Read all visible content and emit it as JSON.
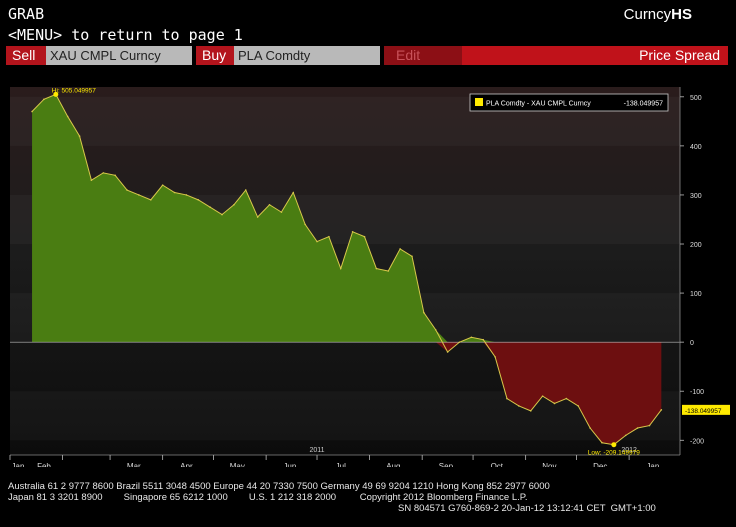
{
  "header": {
    "left_label": "GRAB",
    "right_label_prefix": "Curncy",
    "right_label_bold": "HS",
    "menu_hint": "<MENU> to return to page 1"
  },
  "toolbar": {
    "sell_label": "Sell",
    "sell_value": "XAU CMPL Curncy",
    "buy_label": "Buy",
    "buy_value": "PLA Comdty",
    "edit_label": "Edit",
    "price_spread_label": "Price Spread"
  },
  "legend": {
    "entry": "PLA Comdty - XAU CMPL Curncy",
    "value": "-138.049957"
  },
  "annotations": {
    "high": "Hi: 505.049957",
    "low": "Low: -209.149979",
    "last_value": "-138.049957"
  },
  "footer": {
    "line1": "Australia 61 2 9777 8600 Brazil 5511 3048 4500 Europe 44 20 7330 7500 Germany 49 69 9204 1210 Hong Kong 852 2977 6000",
    "line2": "Japan 81 3 3201 8900        Singapore 65 6212 1000        U.S. 1 212 318 2000         Copyright 2012 Bloomberg Finance L.P.",
    "line3": "SN 804571 G760-869-2 20-Jan-12 13:12:41 CET  GMT+1:00"
  },
  "colors": {
    "positive_fill": "#4a7d12",
    "negative_fill": "#6d0f10",
    "line": "#d8c84a",
    "accent_red": "#c0121a"
  },
  "chart_data": {
    "type": "area",
    "series": [
      {
        "name": "PLA Comdty - XAU CMPL Curncy",
        "x": [
          "2011-01-14",
          "2011-01-21",
          "2011-01-28",
          "2011-02-04",
          "2011-02-11",
          "2011-02-18",
          "2011-02-25",
          "2011-03-04",
          "2011-03-11",
          "2011-03-18",
          "2011-03-25",
          "2011-04-01",
          "2011-04-08",
          "2011-04-15",
          "2011-04-22",
          "2011-04-29",
          "2011-05-06",
          "2011-05-13",
          "2011-05-20",
          "2011-05-27",
          "2011-06-03",
          "2011-06-10",
          "2011-06-17",
          "2011-06-24",
          "2011-07-01",
          "2011-07-08",
          "2011-07-15",
          "2011-07-22",
          "2011-07-29",
          "2011-08-05",
          "2011-08-12",
          "2011-08-19",
          "2011-08-26",
          "2011-09-02",
          "2011-09-09",
          "2011-09-16",
          "2011-09-23",
          "2011-09-30",
          "2011-10-07",
          "2011-10-14",
          "2011-10-21",
          "2011-10-28",
          "2011-11-04",
          "2011-11-11",
          "2011-11-18",
          "2011-11-25",
          "2011-12-02",
          "2011-12-09",
          "2011-12-16",
          "2011-12-23",
          "2011-12-30",
          "2012-01-06",
          "2012-01-13",
          "2012-01-20"
        ],
        "values": [
          470,
          495,
          505,
          460,
          420,
          330,
          345,
          340,
          310,
          300,
          290,
          320,
          305,
          300,
          290,
          275,
          260,
          280,
          310,
          255,
          280,
          265,
          305,
          240,
          205,
          215,
          150,
          225,
          215,
          150,
          145,
          190,
          175,
          60,
          25,
          -20,
          0,
          10,
          5,
          -30,
          -115,
          -130,
          -140,
          -110,
          -125,
          -115,
          -130,
          -175,
          -205,
          -209,
          -190,
          -175,
          -170,
          -138
        ]
      }
    ],
    "x_ticks": [
      "Jan",
      "Feb",
      "Mar",
      "Apr",
      "May",
      "Jun",
      "Jul",
      "Aug",
      "Sep",
      "Oct",
      "Nov",
      "Dec",
      "Jan"
    ],
    "x_year_labels": [
      "2011",
      "2012"
    ],
    "y_ticks": [
      500,
      400,
      300,
      200,
      100,
      0,
      -100,
      -200
    ],
    "ylim": [
      -230,
      520
    ],
    "title": "",
    "xlabel": "",
    "ylabel": "",
    "grid": false,
    "legend_position": "top-right"
  }
}
